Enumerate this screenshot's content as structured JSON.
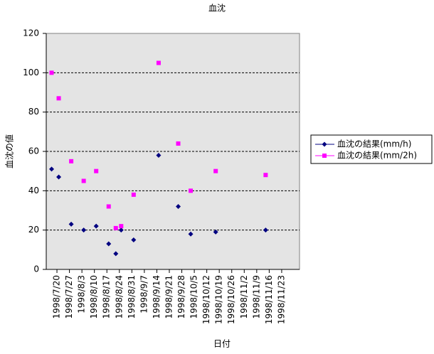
{
  "chart_data": {
    "type": "scatter",
    "title": "血沈",
    "x_label": "日付",
    "y_label": "血沈の値",
    "x": [
      "1998/7/17",
      "1998/7/21",
      "1998/7/28",
      "1998/8/4",
      "1998/8/11",
      "1998/8/18",
      "1998/8/22",
      "1998/8/25",
      "1998/9/1",
      "1998/9/15",
      "1998/9/26",
      "1998/10/3",
      "1998/10/17",
      "1998/11/14"
    ],
    "series": [
      {
        "name": "血沈の結果(mm/h)",
        "color": "#000080",
        "marker": "diamond",
        "values": [
          51,
          47,
          23,
          20,
          22,
          13,
          8,
          20,
          15,
          58,
          32,
          18,
          19,
          20
        ]
      },
      {
        "name": "血沈の結果(mm/2h)",
        "color": "#ff00ff",
        "marker": "square",
        "values": [
          100,
          87,
          55,
          45,
          50,
          32,
          21,
          22,
          38,
          105,
          64,
          40,
          50,
          48
        ]
      }
    ],
    "xlim": [
      "1998/7/14",
      "1998/12/3"
    ],
    "xticks": [
      "1998/7/20",
      "1998/7/27",
      "1998/8/3",
      "1998/8/10",
      "1998/8/17",
      "1998/8/24",
      "1998/8/31",
      "1998/9/7",
      "1998/9/14",
      "1998/9/21",
      "1998/9/28",
      "1998/10/5",
      "1998/10/12",
      "1998/10/19",
      "1998/10/26",
      "1998/11/2",
      "1998/11/9",
      "1998/11/16",
      "1998/11/23"
    ],
    "ylim": [
      0,
      120
    ],
    "yticks": [
      0,
      20,
      40,
      60,
      80,
      100,
      120
    ],
    "grid": true,
    "legend": "right"
  }
}
